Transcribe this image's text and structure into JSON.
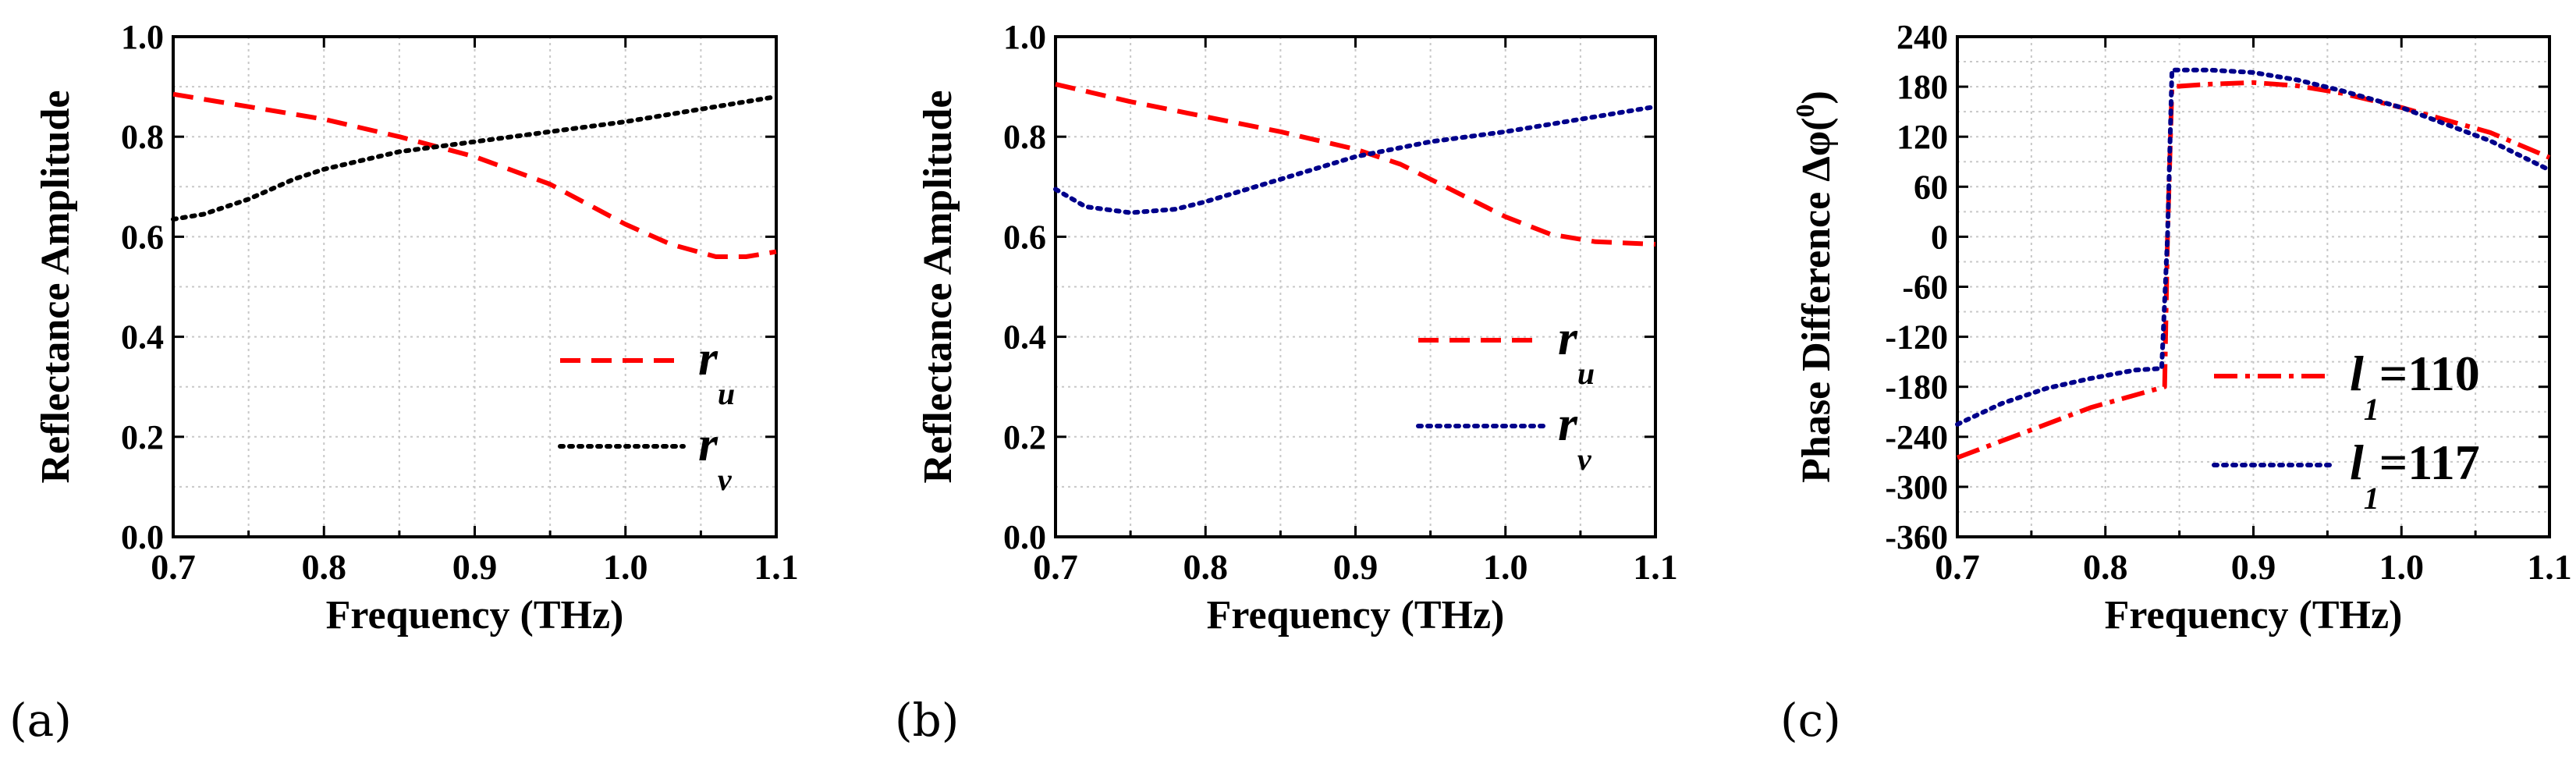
{
  "chart_data": [
    {
      "type": "line",
      "panel_label": "(a)",
      "xlabel": "Frequency (THz)",
      "ylabel": "Reflectance Amplitude",
      "xlim": [
        0.7,
        1.1
      ],
      "ylim": [
        0.0,
        1.0
      ],
      "x_ticks": [
        0.7,
        0.8,
        0.9,
        1.0,
        1.1
      ],
      "x_tick_labels": [
        "0.7",
        "0.8",
        "0.9",
        "1.0",
        "1.1"
      ],
      "y_ticks": [
        0.0,
        0.2,
        0.4,
        0.6,
        0.8,
        1.0
      ],
      "y_tick_labels": [
        "0.0",
        "0.2",
        "0.4",
        "0.6",
        "0.8",
        "1.0"
      ],
      "grid": true,
      "legend_position": "bottom-right",
      "series": [
        {
          "name": "r_u",
          "label_main": "r",
          "label_sub": "u",
          "color": "#ff0000",
          "style": "dashed",
          "x": [
            0.7,
            0.75,
            0.8,
            0.85,
            0.9,
            0.95,
            1.0,
            1.03,
            1.06,
            1.08,
            1.1
          ],
          "y": [
            0.885,
            0.86,
            0.835,
            0.8,
            0.76,
            0.705,
            0.625,
            0.585,
            0.56,
            0.56,
            0.57
          ]
        },
        {
          "name": "r_v",
          "label_main": "r",
          "label_sub": "v",
          "color": "#000000",
          "style": "dotted",
          "x": [
            0.7,
            0.72,
            0.75,
            0.78,
            0.8,
            0.85,
            0.9,
            0.95,
            1.0,
            1.05,
            1.1
          ],
          "y": [
            0.635,
            0.645,
            0.675,
            0.715,
            0.735,
            0.77,
            0.79,
            0.81,
            0.83,
            0.855,
            0.88
          ]
        }
      ]
    },
    {
      "type": "line",
      "panel_label": "(b)",
      "xlabel": "Frequency (THz)",
      "ylabel": "Reflectance Amplitude",
      "xlim": [
        0.7,
        1.1
      ],
      "ylim": [
        0.0,
        1.0
      ],
      "x_ticks": [
        0.7,
        0.8,
        0.9,
        1.0,
        1.1
      ],
      "x_tick_labels": [
        "0.7",
        "0.8",
        "0.9",
        "1.0",
        "1.1"
      ],
      "y_ticks": [
        0.0,
        0.2,
        0.4,
        0.6,
        0.8,
        1.0
      ],
      "y_tick_labels": [
        "0.0",
        "0.2",
        "0.4",
        "0.6",
        "0.8",
        "1.0"
      ],
      "grid": true,
      "legend_position": "center-right",
      "series": [
        {
          "name": "r_u",
          "label_main": "r",
          "label_sub": "u",
          "color": "#ff0000",
          "style": "dashed",
          "x": [
            0.7,
            0.75,
            0.8,
            0.85,
            0.9,
            0.93,
            0.95,
            1.0,
            1.03,
            1.06,
            1.1
          ],
          "y": [
            0.905,
            0.87,
            0.84,
            0.81,
            0.775,
            0.745,
            0.715,
            0.64,
            0.605,
            0.59,
            0.585
          ]
        },
        {
          "name": "r_v",
          "label_main": "r",
          "label_sub": "v",
          "color": "#00008b",
          "style": "dotted",
          "x": [
            0.7,
            0.72,
            0.75,
            0.78,
            0.8,
            0.85,
            0.9,
            0.95,
            1.0,
            1.05,
            1.1
          ],
          "y": [
            0.695,
            0.66,
            0.648,
            0.655,
            0.67,
            0.715,
            0.76,
            0.79,
            0.81,
            0.835,
            0.86
          ]
        }
      ]
    },
    {
      "type": "line",
      "panel_label": "(c)",
      "xlabel": "Frequency (THz)",
      "ylabel": "Phase Difference Δφ(°)",
      "ylabel_main": "Phase Difference Δφ(",
      "ylabel_sup": "0",
      "ylabel_close": ")",
      "xlim": [
        0.7,
        1.1
      ],
      "ylim": [
        -360,
        240
      ],
      "x_ticks": [
        0.7,
        0.8,
        0.9,
        1.0,
        1.1
      ],
      "x_tick_labels": [
        "0.7",
        "0.8",
        "0.9",
        "1.0",
        "1.1"
      ],
      "y_ticks": [
        -360,
        -300,
        -240,
        -180,
        -120,
        -60,
        0,
        60,
        120,
        180,
        240
      ],
      "y_tick_labels": [
        "-360",
        "-300",
        "-240",
        "-180",
        "-120",
        "-60",
        "0",
        "60",
        "120",
        "180",
        "240"
      ],
      "grid": true,
      "legend_position": "lower-center",
      "series": [
        {
          "name": "l1=110",
          "label_main": "l",
          "label_sub": "1",
          "label_rest": "=110",
          "color": "#ff0000",
          "style": "dashdot",
          "x": [
            0.7,
            0.73,
            0.76,
            0.79,
            0.81,
            0.84,
            0.842,
            0.845,
            0.87,
            0.9,
            0.93,
            0.96,
            1.0,
            1.03,
            1.06,
            1.1
          ],
          "y": [
            -265,
            -245,
            -225,
            -205,
            -195,
            -180,
            0,
            180,
            183,
            185,
            181,
            172,
            155,
            140,
            125,
            95
          ]
        },
        {
          "name": "l1=117",
          "label_main": "l",
          "label_sub": "1",
          "label_rest": "=117",
          "color": "#00008b",
          "style": "dotted",
          "x": [
            0.7,
            0.73,
            0.76,
            0.79,
            0.82,
            0.838,
            0.842,
            0.845,
            0.87,
            0.9,
            0.93,
            0.96,
            1.0,
            1.03,
            1.06,
            1.1
          ],
          "y": [
            -225,
            -200,
            -182,
            -170,
            -160,
            -158,
            0,
            200,
            200,
            197,
            188,
            175,
            155,
            135,
            115,
            80
          ]
        }
      ]
    }
  ]
}
